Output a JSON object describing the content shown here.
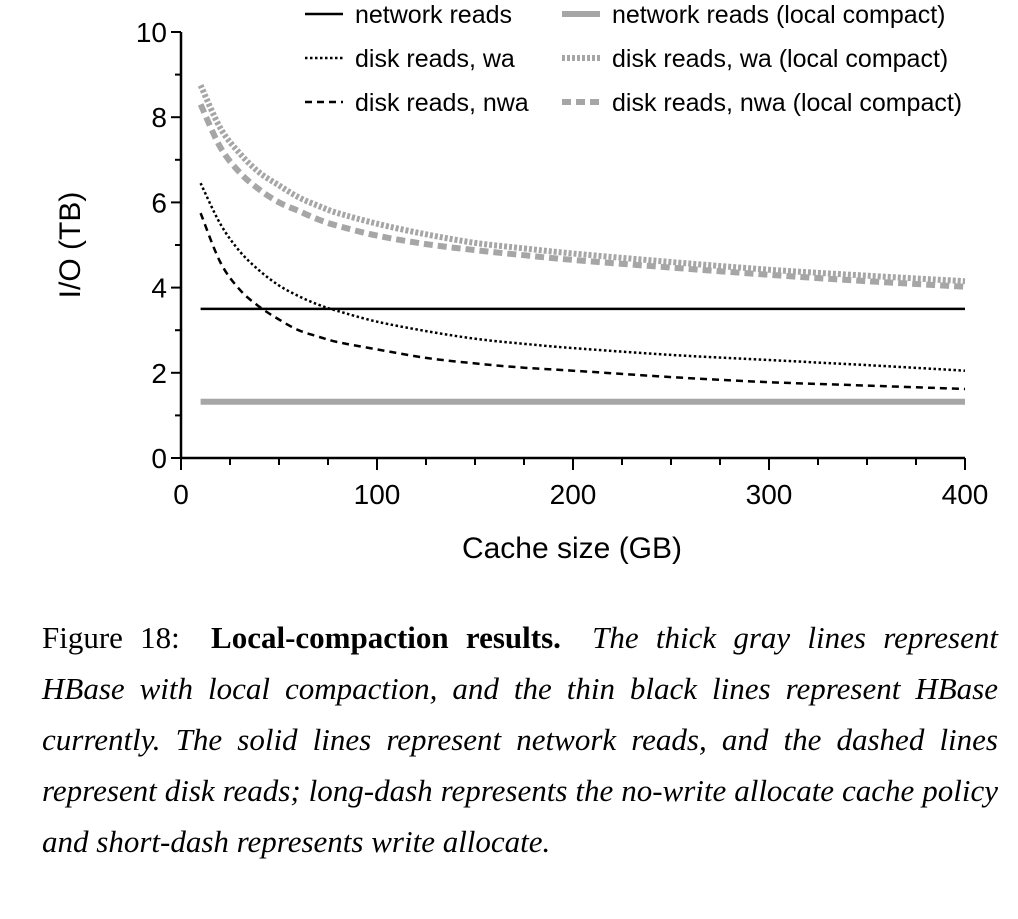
{
  "figure": {
    "label": "Figure 18:",
    "title": "Local-compaction results.",
    "text": "The thick gray lines represent HBase with local compaction, and the thin black lines represent HBase currently. The solid lines represent network reads, and the dashed lines represent disk reads; long-dash represents the no-write allocate cache policy and short-dash represents write allocate."
  },
  "colors": {
    "black": "#000000",
    "gray": "#a6a6a6"
  },
  "chart_data": {
    "type": "line",
    "title": "",
    "xlabel": "Cache size (GB)",
    "ylabel": "I/O (TB)",
    "xlim": [
      0,
      400
    ],
    "ylim": [
      0,
      10
    ],
    "x_ticks": [
      0,
      100,
      200,
      300,
      400
    ],
    "y_ticks": [
      0,
      2,
      4,
      6,
      8,
      10
    ],
    "grid": false,
    "legend_position": "top-right",
    "x": [
      10,
      20,
      30,
      40,
      50,
      60,
      70,
      80,
      100,
      125,
      150,
      175,
      200,
      250,
      300,
      350,
      400
    ],
    "series": [
      {
        "name": "network reads",
        "color": "#000000",
        "style": "solid",
        "width": "thin",
        "values": [
          3.5,
          3.5,
          3.5,
          3.5,
          3.5,
          3.5,
          3.5,
          3.5,
          3.5,
          3.5,
          3.5,
          3.5,
          3.5,
          3.5,
          3.5,
          3.5,
          3.5
        ]
      },
      {
        "name": "disk reads, wa",
        "color": "#000000",
        "style": "dotted",
        "width": "thin",
        "values": [
          6.45,
          5.5,
          4.85,
          4.4,
          4.05,
          3.8,
          3.6,
          3.45,
          3.2,
          2.98,
          2.8,
          2.68,
          2.58,
          2.42,
          2.3,
          2.18,
          2.05
        ]
      },
      {
        "name": "disk reads, nwa",
        "color": "#000000",
        "style": "dashed",
        "width": "thin",
        "values": [
          5.75,
          4.6,
          3.95,
          3.55,
          3.25,
          3.0,
          2.85,
          2.72,
          2.55,
          2.35,
          2.22,
          2.12,
          2.05,
          1.9,
          1.78,
          1.7,
          1.62
        ]
      },
      {
        "name": "network reads (local compact)",
        "color": "#a6a6a6",
        "style": "solid",
        "width": "thick",
        "values": [
          1.32,
          1.32,
          1.32,
          1.32,
          1.32,
          1.32,
          1.32,
          1.32,
          1.32,
          1.32,
          1.32,
          1.32,
          1.32,
          1.32,
          1.32,
          1.32,
          1.32
        ]
      },
      {
        "name": "disk reads, wa (local compact)",
        "color": "#a6a6a6",
        "style": "dotted",
        "width": "thick",
        "values": [
          8.75,
          7.75,
          7.15,
          6.7,
          6.4,
          6.12,
          5.92,
          5.75,
          5.5,
          5.25,
          5.05,
          4.92,
          4.8,
          4.6,
          4.42,
          4.28,
          4.15
        ]
      },
      {
        "name": "disk reads, nwa (local compact)",
        "color": "#a6a6a6",
        "style": "dashed",
        "width": "thick",
        "values": [
          8.3,
          7.3,
          6.7,
          6.3,
          6.0,
          5.8,
          5.6,
          5.45,
          5.22,
          5.02,
          4.88,
          4.76,
          4.65,
          4.47,
          4.3,
          4.15,
          4.02
        ]
      }
    ]
  }
}
